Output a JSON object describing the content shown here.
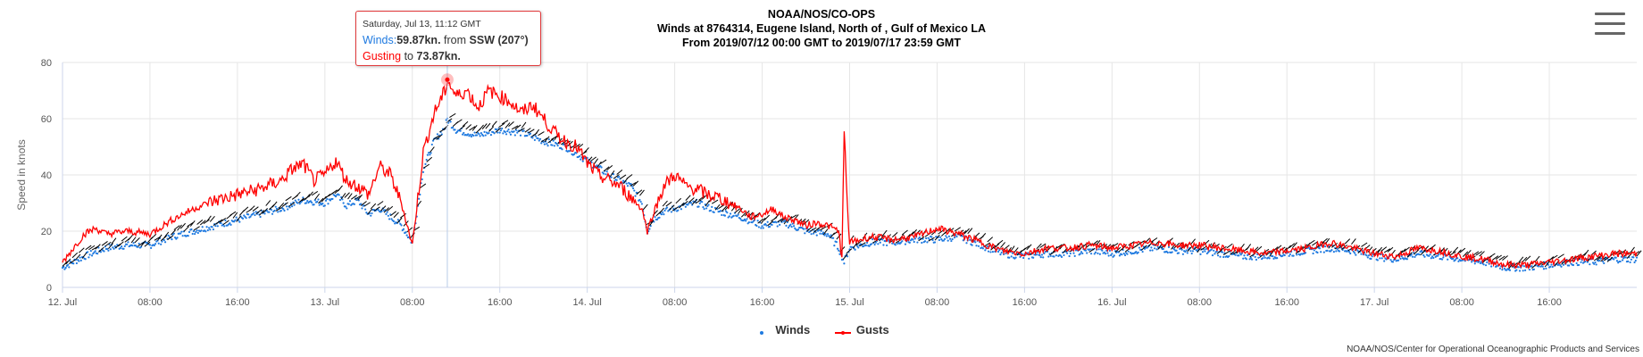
{
  "header": {
    "title_line1": "NOAA/NOS/CO-OPS",
    "title_line2": "Winds at 8764314, Eugene Island, North of , Gulf of Mexico LA",
    "title_line3": "From 2019/07/12 00:00 GMT to 2019/07/17 23:59 GMT"
  },
  "tooltip": {
    "date": "Saturday, Jul 13, 11:12 GMT",
    "winds_label": "Winds:",
    "winds_value": "59.87kn.",
    "from_text": "from",
    "direction": "SSW (207°)",
    "gust_label": "Gusting",
    "gust_to": "to",
    "gust_value": "73.87kn."
  },
  "legend": {
    "winds": "Winds",
    "gusts": "Gusts"
  },
  "credits": "NOAA/NOS/Center for Operational Oceanographic Products and Services",
  "colors": {
    "winds": "#1f7ae0",
    "gusts": "#ff0000",
    "arrows": "#000000",
    "grid": "#e6e6e6"
  },
  "chart_data": {
    "type": "line",
    "ylabel": "Speed in knots",
    "ylim": [
      0,
      80
    ],
    "yticks": [
      "0",
      "20",
      "40",
      "60",
      "80"
    ],
    "xlim_hours": [
      0,
      144
    ],
    "xticks": [
      {
        "hour": 0,
        "label": "12. Jul"
      },
      {
        "hour": 8,
        "label": "08:00"
      },
      {
        "hour": 16,
        "label": "16:00"
      },
      {
        "hour": 24,
        "label": "13. Jul"
      },
      {
        "hour": 32,
        "label": "08:00"
      },
      {
        "hour": 40,
        "label": "16:00"
      },
      {
        "hour": 48,
        "label": "14. Jul"
      },
      {
        "hour": 56,
        "label": "08:00"
      },
      {
        "hour": 64,
        "label": "16:00"
      },
      {
        "hour": 72,
        "label": "15. Jul"
      },
      {
        "hour": 80,
        "label": "08:00"
      },
      {
        "hour": 88,
        "label": "16:00"
      },
      {
        "hour": 96,
        "label": "16. Jul"
      },
      {
        "hour": 104,
        "label": "08:00"
      },
      {
        "hour": 112,
        "label": "16:00"
      },
      {
        "hour": 120,
        "label": "17. Jul"
      },
      {
        "hour": 128,
        "label": "08:00"
      },
      {
        "hour": 136,
        "label": "16:00"
      }
    ],
    "grid": true,
    "legend_position": "bottom-center",
    "highlight": {
      "hour": 35.2,
      "winds": 59.87,
      "gusts": 73.87
    },
    "series": [
      {
        "name": "Winds",
        "points": [
          [
            0,
            7
          ],
          [
            2,
            11
          ],
          [
            4,
            14
          ],
          [
            6,
            15
          ],
          [
            8,
            15
          ],
          [
            10,
            18
          ],
          [
            12,
            20
          ],
          [
            14,
            22
          ],
          [
            16,
            24
          ],
          [
            18,
            26
          ],
          [
            20,
            28
          ],
          [
            22,
            31
          ],
          [
            24,
            30
          ],
          [
            25,
            33
          ],
          [
            26,
            29
          ],
          [
            27,
            31
          ],
          [
            28,
            26
          ],
          [
            29,
            28
          ],
          [
            30,
            25
          ],
          [
            31,
            22
          ],
          [
            32,
            16
          ],
          [
            33,
            42
          ],
          [
            34,
            52
          ],
          [
            35,
            57
          ],
          [
            35.2,
            59.87
          ],
          [
            36,
            56
          ],
          [
            38,
            54
          ],
          [
            40,
            56
          ],
          [
            42,
            55
          ],
          [
            44,
            52
          ],
          [
            46,
            50
          ],
          [
            48,
            45
          ],
          [
            50,
            40
          ],
          [
            52,
            36
          ],
          [
            53,
            30
          ],
          [
            53.5,
            20
          ],
          [
            54,
            24
          ],
          [
            55,
            27
          ],
          [
            56,
            28
          ],
          [
            58,
            30
          ],
          [
            60,
            27
          ],
          [
            62,
            25
          ],
          [
            64,
            22
          ],
          [
            66,
            23
          ],
          [
            68,
            20
          ],
          [
            70,
            19
          ],
          [
            71,
            14
          ],
          [
            71.5,
            9
          ],
          [
            72,
            14
          ],
          [
            74,
            16
          ],
          [
            76,
            16
          ],
          [
            78,
            17
          ],
          [
            80,
            17
          ],
          [
            82,
            18
          ],
          [
            84,
            15
          ],
          [
            86,
            12
          ],
          [
            88,
            11
          ],
          [
            90,
            12
          ],
          [
            92,
            12
          ],
          [
            94,
            13
          ],
          [
            96,
            12
          ],
          [
            98,
            13
          ],
          [
            100,
            14
          ],
          [
            102,
            13
          ],
          [
            104,
            13
          ],
          [
            106,
            12
          ],
          [
            108,
            11
          ],
          [
            110,
            11
          ],
          [
            112,
            12
          ],
          [
            114,
            13
          ],
          [
            116,
            14
          ],
          [
            118,
            13
          ],
          [
            120,
            11
          ],
          [
            122,
            10
          ],
          [
            124,
            12
          ],
          [
            126,
            11
          ],
          [
            128,
            10
          ],
          [
            130,
            9
          ],
          [
            132,
            7
          ],
          [
            134,
            7
          ],
          [
            136,
            8
          ],
          [
            138,
            9
          ],
          [
            140,
            9
          ],
          [
            142,
            10
          ],
          [
            144,
            10
          ]
        ]
      },
      {
        "name": "Gusts",
        "points": [
          [
            0,
            9
          ],
          [
            1,
            14
          ],
          [
            2,
            19
          ],
          [
            3,
            21
          ],
          [
            4,
            19
          ],
          [
            6,
            20
          ],
          [
            8,
            19
          ],
          [
            10,
            24
          ],
          [
            12,
            28
          ],
          [
            14,
            31
          ],
          [
            16,
            33
          ],
          [
            18,
            35
          ],
          [
            20,
            38
          ],
          [
            21,
            42
          ],
          [
            22,
            44
          ],
          [
            23,
            38
          ],
          [
            24,
            40
          ],
          [
            25,
            45
          ],
          [
            26,
            38
          ],
          [
            27,
            36
          ],
          [
            28,
            33
          ],
          [
            29,
            43
          ],
          [
            30,
            40
          ],
          [
            31,
            30
          ],
          [
            32,
            15
          ],
          [
            33,
            48
          ],
          [
            34,
            62
          ],
          [
            35,
            70
          ],
          [
            35.2,
            73.87
          ],
          [
            36,
            68
          ],
          [
            37,
            70
          ],
          [
            38,
            64
          ],
          [
            39,
            70
          ],
          [
            40,
            68
          ],
          [
            41,
            66
          ],
          [
            42,
            62
          ],
          [
            43,
            65
          ],
          [
            44,
            60
          ],
          [
            45,
            55
          ],
          [
            46,
            52
          ],
          [
            47,
            50
          ],
          [
            48,
            44
          ],
          [
            49,
            40
          ],
          [
            50,
            38
          ],
          [
            51,
            36
          ],
          [
            52,
            32
          ],
          [
            53,
            28
          ],
          [
            53.5,
            20
          ],
          [
            54,
            26
          ],
          [
            55,
            36
          ],
          [
            56,
            40
          ],
          [
            57,
            36
          ],
          [
            58,
            35
          ],
          [
            59,
            33
          ],
          [
            60,
            32
          ],
          [
            61,
            30
          ],
          [
            62,
            28
          ],
          [
            63,
            25
          ],
          [
            64,
            26
          ],
          [
            65,
            28
          ],
          [
            66,
            25
          ],
          [
            67,
            24
          ],
          [
            68,
            22
          ],
          [
            69,
            23
          ],
          [
            70,
            22
          ],
          [
            71,
            20
          ],
          [
            71.3,
            10
          ],
          [
            71.5,
            56
          ],
          [
            71.8,
            28
          ],
          [
            72,
            16
          ],
          [
            74,
            18
          ],
          [
            76,
            17
          ],
          [
            78,
            18
          ],
          [
            80,
            21
          ],
          [
            82,
            19
          ],
          [
            84,
            16
          ],
          [
            86,
            13
          ],
          [
            88,
            12
          ],
          [
            90,
            14
          ],
          [
            92,
            14
          ],
          [
            94,
            15
          ],
          [
            96,
            14
          ],
          [
            98,
            15
          ],
          [
            100,
            16
          ],
          [
            102,
            15
          ],
          [
            104,
            15
          ],
          [
            106,
            14
          ],
          [
            108,
            13
          ],
          [
            110,
            12
          ],
          [
            112,
            13
          ],
          [
            114,
            14
          ],
          [
            116,
            16
          ],
          [
            118,
            14
          ],
          [
            120,
            12
          ],
          [
            122,
            11
          ],
          [
            124,
            14
          ],
          [
            126,
            13
          ],
          [
            128,
            11
          ],
          [
            130,
            10
          ],
          [
            132,
            8
          ],
          [
            134,
            8
          ],
          [
            136,
            9
          ],
          [
            138,
            10
          ],
          [
            140,
            11
          ],
          [
            142,
            12
          ],
          [
            144,
            12
          ]
        ]
      }
    ]
  }
}
